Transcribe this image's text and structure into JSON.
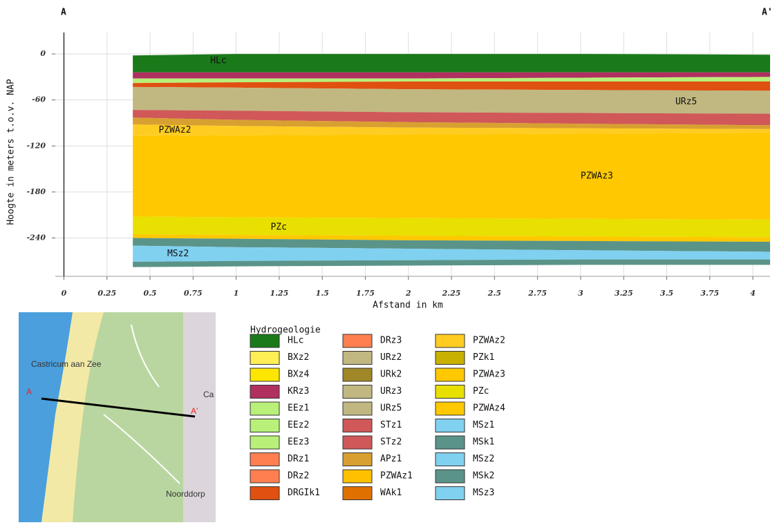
{
  "chart_data": {
    "type": "cross-section",
    "start_label": "A",
    "end_label": "A'",
    "ylabel": "Hoogte in meters t.o.v. NAP",
    "xlabel": "Afstand in km",
    "xlim": [
      -0.05,
      4.1
    ],
    "ylim": [
      -290,
      28
    ],
    "xticks": [
      0,
      0.25,
      0.5,
      0.75,
      1,
      1.25,
      1.5,
      1.75,
      2,
      2.25,
      2.5,
      2.75,
      3,
      3.25,
      3.5,
      3.75,
      4
    ],
    "yticks": [
      0,
      -60,
      -120,
      -180,
      -240
    ],
    "grid": true,
    "x": [
      0.4,
      1.0,
      2.0,
      3.0,
      4.1
    ],
    "layers": [
      {
        "name": "HLc",
        "color": "#1a7a1a",
        "top": [
          -2,
          0,
          0,
          0,
          -1
        ],
        "bottom": [
          -24,
          -24,
          -24,
          -24,
          -24
        ]
      },
      {
        "name": "KRz3",
        "color": "#b03060",
        "top": [
          -24,
          -24,
          -24,
          -24,
          -24
        ],
        "bottom": [
          -32,
          -32,
          -32,
          -31,
          -30
        ]
      },
      {
        "name": "EEz1",
        "color": "#b8f07a",
        "top": [
          -32,
          -32,
          -32,
          -31,
          -30
        ],
        "bottom": [
          -38,
          -37,
          -36,
          -36,
          -36
        ]
      },
      {
        "name": "DRGIk1",
        "color": "#e05010",
        "top": [
          -38,
          -37,
          -36,
          -36,
          -36
        ],
        "bottom": [
          -43,
          -44,
          -46,
          -47,
          -48
        ]
      },
      {
        "name": "URz5",
        "color": "#c0b880",
        "top": [
          -43,
          -44,
          -46,
          -47,
          -48
        ],
        "bottom": [
          -73,
          -74,
          -76,
          -77,
          -78
        ]
      },
      {
        "name": "STz1",
        "color": "#d05858",
        "top": [
          -73,
          -74,
          -76,
          -77,
          -78
        ],
        "bottom": [
          -83,
          -86,
          -89,
          -91,
          -93
        ]
      },
      {
        "name": "APz1",
        "color": "#d8a030",
        "top": [
          -83,
          -86,
          -89,
          -91,
          -93
        ],
        "bottom": [
          -92,
          -94,
          -96,
          -97,
          -98
        ]
      },
      {
        "name": "PZWAz2",
        "color": "#ffcc22",
        "top": [
          -92,
          -94,
          -96,
          -97,
          -98
        ],
        "bottom": [
          -107,
          -106,
          -105,
          -104,
          -103
        ]
      },
      {
        "name": "PZWAz3",
        "color": "#ffc800",
        "top": [
          -107,
          -106,
          -105,
          -104,
          -103
        ],
        "bottom": [
          -212,
          -213,
          -214,
          -215,
          -216
        ]
      },
      {
        "name": "PZc",
        "color": "#e8e000",
        "top": [
          -212,
          -213,
          -214,
          -215,
          -216
        ],
        "bottom": [
          -235,
          -236,
          -237,
          -238,
          -239
        ]
      },
      {
        "name": "PZWAz4",
        "color": "#ffc800",
        "top": [
          -235,
          -236,
          -237,
          -238,
          -239
        ],
        "bottom": [
          -240,
          -241,
          -243,
          -244,
          -245
        ]
      },
      {
        "name": "MSk1",
        "color": "#5a9488",
        "top": [
          -240,
          -241,
          -243,
          -244,
          -245
        ],
        "bottom": [
          -250,
          -252,
          -254,
          -256,
          -258
        ]
      },
      {
        "name": "MSz2",
        "color": "#80d0f0",
        "top": [
          -250,
          -252,
          -254,
          -256,
          -258
        ],
        "bottom": [
          -271,
          -270,
          -269,
          -268,
          -268
        ]
      },
      {
        "name": "MSk2",
        "color": "#5a9488",
        "top": [
          -271,
          -270,
          -269,
          -268,
          -268
        ],
        "bottom": [
          -278,
          -277,
          -276,
          -275,
          -275
        ]
      }
    ]
  },
  "map": {
    "labels": [
      "Castricum aan Zee",
      "A",
      "A'",
      "Ca",
      "Noorddorp"
    ]
  },
  "legend": {
    "title": "Hydrogeologie",
    "items": [
      {
        "name": "HLc",
        "color": "#1a7a1a"
      },
      {
        "name": "BXz2",
        "color": "#ffee55"
      },
      {
        "name": "BXz4",
        "color": "#ffe600"
      },
      {
        "name": "KRz3",
        "color": "#b03060"
      },
      {
        "name": "EEz1",
        "color": "#b8f07a"
      },
      {
        "name": "EEz2",
        "color": "#b8f07a"
      },
      {
        "name": "EEz3",
        "color": "#b8f07a"
      },
      {
        "name": "DRz1",
        "color": "#ff7f50"
      },
      {
        "name": "DRz2",
        "color": "#ff7f50"
      },
      {
        "name": "DRGIk1",
        "color": "#e05010"
      },
      {
        "name": "DRz3",
        "color": "#ff7f50"
      },
      {
        "name": "URz2",
        "color": "#c0b880"
      },
      {
        "name": "URk2",
        "color": "#a08828"
      },
      {
        "name": "URz3",
        "color": "#c0b880"
      },
      {
        "name": "URz5",
        "color": "#c0b880"
      },
      {
        "name": "STz1",
        "color": "#d05858"
      },
      {
        "name": "STz2",
        "color": "#d05858"
      },
      {
        "name": "APz1",
        "color": "#d8a030"
      },
      {
        "name": "PZWAz1",
        "color": "#ffc000"
      },
      {
        "name": "WAk1",
        "color": "#e07000"
      },
      {
        "name": "PZWAz2",
        "color": "#ffcc22"
      },
      {
        "name": "PZk1",
        "color": "#c8b000"
      },
      {
        "name": "PZWAz3",
        "color": "#ffc800"
      },
      {
        "name": "PZc",
        "color": "#e8e000"
      },
      {
        "name": "PZWAz4",
        "color": "#ffc800"
      },
      {
        "name": "MSz1",
        "color": "#80d0f0"
      },
      {
        "name": "MSk1",
        "color": "#5a9488"
      },
      {
        "name": "MSz2",
        "color": "#80d0f0"
      },
      {
        "name": "MSk2",
        "color": "#5a9488"
      },
      {
        "name": "MSz3",
        "color": "#80d0f0"
      }
    ]
  }
}
